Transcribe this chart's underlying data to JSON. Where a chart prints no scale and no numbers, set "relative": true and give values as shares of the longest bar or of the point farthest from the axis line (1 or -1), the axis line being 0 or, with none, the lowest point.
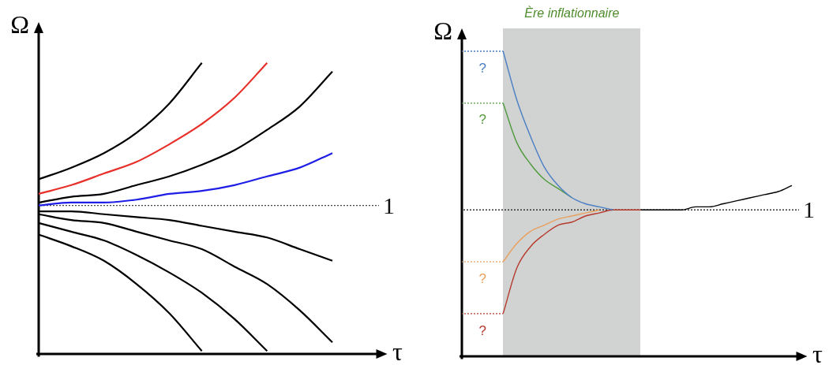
{
  "chart_data": [
    {
      "type": "line",
      "relative": true,
      "xlabel": "τ",
      "ylabel": "Ω",
      "categories": [
        null,
        null,
        null,
        null,
        null,
        null,
        null,
        null,
        null,
        null
      ],
      "series": [
        {
          "color": "#000000",
          "values": [
            0.6,
            0.64,
            0.69,
            0.76,
            0.86,
            1,
            null,
            null,
            null,
            null
          ]
        },
        {
          "color": "#e8302a",
          "values": [
            0.55,
            0.58,
            0.62,
            0.66,
            0.72,
            0.79,
            0.88,
            1,
            null,
            null
          ]
        },
        {
          "color": "#000000",
          "values": [
            0.52,
            0.54,
            0.55,
            0.58,
            0.61,
            0.65,
            0.7,
            0.77,
            0.85,
            0.97
          ]
        },
        {
          "color": "#1e1ee6",
          "values": [
            0.51,
            0.52,
            0.52,
            0.53,
            0.55,
            0.56,
            0.58,
            0.61,
            0.64,
            0.69
          ]
        },
        {
          "color": "#000000",
          "values": [
            0.49,
            0.49,
            0.48,
            0.47,
            0.46,
            0.44,
            0.42,
            0.4,
            0.36,
            0.32
          ]
        },
        {
          "color": "#000000",
          "values": [
            0.48,
            0.46,
            0.45,
            0.42,
            0.39,
            0.36,
            0.3,
            0.24,
            0.15,
            0.04
          ]
        },
        {
          "color": "#000000",
          "values": [
            0.45,
            0.42,
            0.39,
            0.34,
            0.28,
            0.21,
            0.12,
            0.01,
            null,
            null
          ]
        },
        {
          "color": "#000000",
          "values": [
            0.41,
            0.37,
            0.32,
            0.24,
            0.14,
            0.01,
            null,
            null,
            null,
            null
          ]
        }
      ],
      "ref_lines": [
        {
          "axis": "y",
          "value": 0.51,
          "line_style": "dotted",
          "color": "#444444"
        }
      ],
      "annotations": [
        "1"
      ]
    },
    {
      "type": "line",
      "relative": true,
      "xlabel": "τ",
      "ylabel": "Ω",
      "categories": [
        null,
        null,
        null,
        null,
        null,
        null,
        null,
        null,
        null,
        null,
        null,
        null,
        null,
        null,
        null,
        null,
        null,
        null,
        null,
        null,
        null,
        null,
        null,
        null,
        null
      ],
      "series": [
        {
          "color": "#4a7fc4",
          "line_style": "dotted",
          "values": [
            1,
            1,
            1,
            1,
            null,
            null,
            null,
            null,
            null,
            null,
            null,
            null,
            null,
            null,
            null,
            null,
            null,
            null,
            null,
            null,
            null,
            null,
            null,
            null,
            null
          ]
        },
        {
          "color": "#4f9a3c",
          "line_style": "dotted",
          "values": [
            0.83,
            0.83,
            0.83,
            0.83,
            null,
            null,
            null,
            null,
            null,
            null,
            null,
            null,
            null,
            null,
            null,
            null,
            null,
            null,
            null,
            null,
            null,
            null,
            null,
            null,
            null
          ]
        },
        {
          "color": "#e9a05c",
          "line_style": "dotted",
          "values": [
            0.31,
            0.31,
            0.31,
            0.31,
            null,
            null,
            null,
            null,
            null,
            null,
            null,
            null,
            null,
            null,
            null,
            null,
            null,
            null,
            null,
            null,
            null,
            null,
            null,
            null,
            null
          ]
        },
        {
          "color": "#b63a2c",
          "line_style": "dotted",
          "values": [
            0.14,
            0.14,
            0.14,
            0.14,
            null,
            null,
            null,
            null,
            null,
            null,
            null,
            null,
            null,
            null,
            null,
            null,
            null,
            null,
            null,
            null,
            null,
            null,
            null,
            null,
            null
          ]
        },
        {
          "color": "#4a7fc4",
          "values": [
            null,
            null,
            null,
            1,
            0.84,
            0.72,
            0.62,
            0.56,
            0.52,
            0.5,
            0.49,
            0.48,
            null,
            null,
            null,
            null,
            null,
            null,
            null,
            null,
            null,
            null,
            null,
            null,
            null
          ]
        },
        {
          "color": "#4f9a3c",
          "values": [
            null,
            null,
            null,
            0.83,
            0.7,
            0.63,
            0.58,
            0.55,
            0.52,
            null,
            null,
            null,
            null,
            null,
            null,
            null,
            null,
            null,
            null,
            null,
            null,
            null,
            null,
            null,
            null
          ]
        },
        {
          "color": "#e9a05c",
          "values": [
            null,
            null,
            null,
            0.31,
            0.37,
            0.41,
            0.43,
            0.45,
            0.46,
            0.47,
            0.48,
            null,
            null,
            null,
            null,
            null,
            null,
            null,
            null,
            null,
            null,
            null,
            null,
            null,
            null
          ]
        },
        {
          "color": "#b63a2c",
          "values": [
            null,
            null,
            null,
            0.14,
            0.29,
            0.36,
            0.4,
            0.43,
            0.44,
            0.46,
            0.47,
            0.48,
            0.48,
            0.48,
            null,
            null,
            null,
            null,
            null,
            null,
            null,
            null,
            null,
            null,
            null
          ]
        },
        {
          "color": "#000000",
          "values": [
            null,
            null,
            null,
            null,
            null,
            null,
            null,
            null,
            null,
            null,
            null,
            null,
            null,
            0.48,
            0.48,
            0.48,
            0.48,
            0.49,
            0.49,
            0.5,
            0.51,
            0.52,
            0.53,
            0.54,
            0.56
          ]
        }
      ],
      "ref_lines": [
        {
          "axis": "y",
          "value": 0.48,
          "line_style": "dotted",
          "color": "#333333"
        }
      ],
      "annotations": [
        "Ère inflationnaire",
        "?",
        "?",
        "?",
        "?",
        "1"
      ]
    }
  ]
}
